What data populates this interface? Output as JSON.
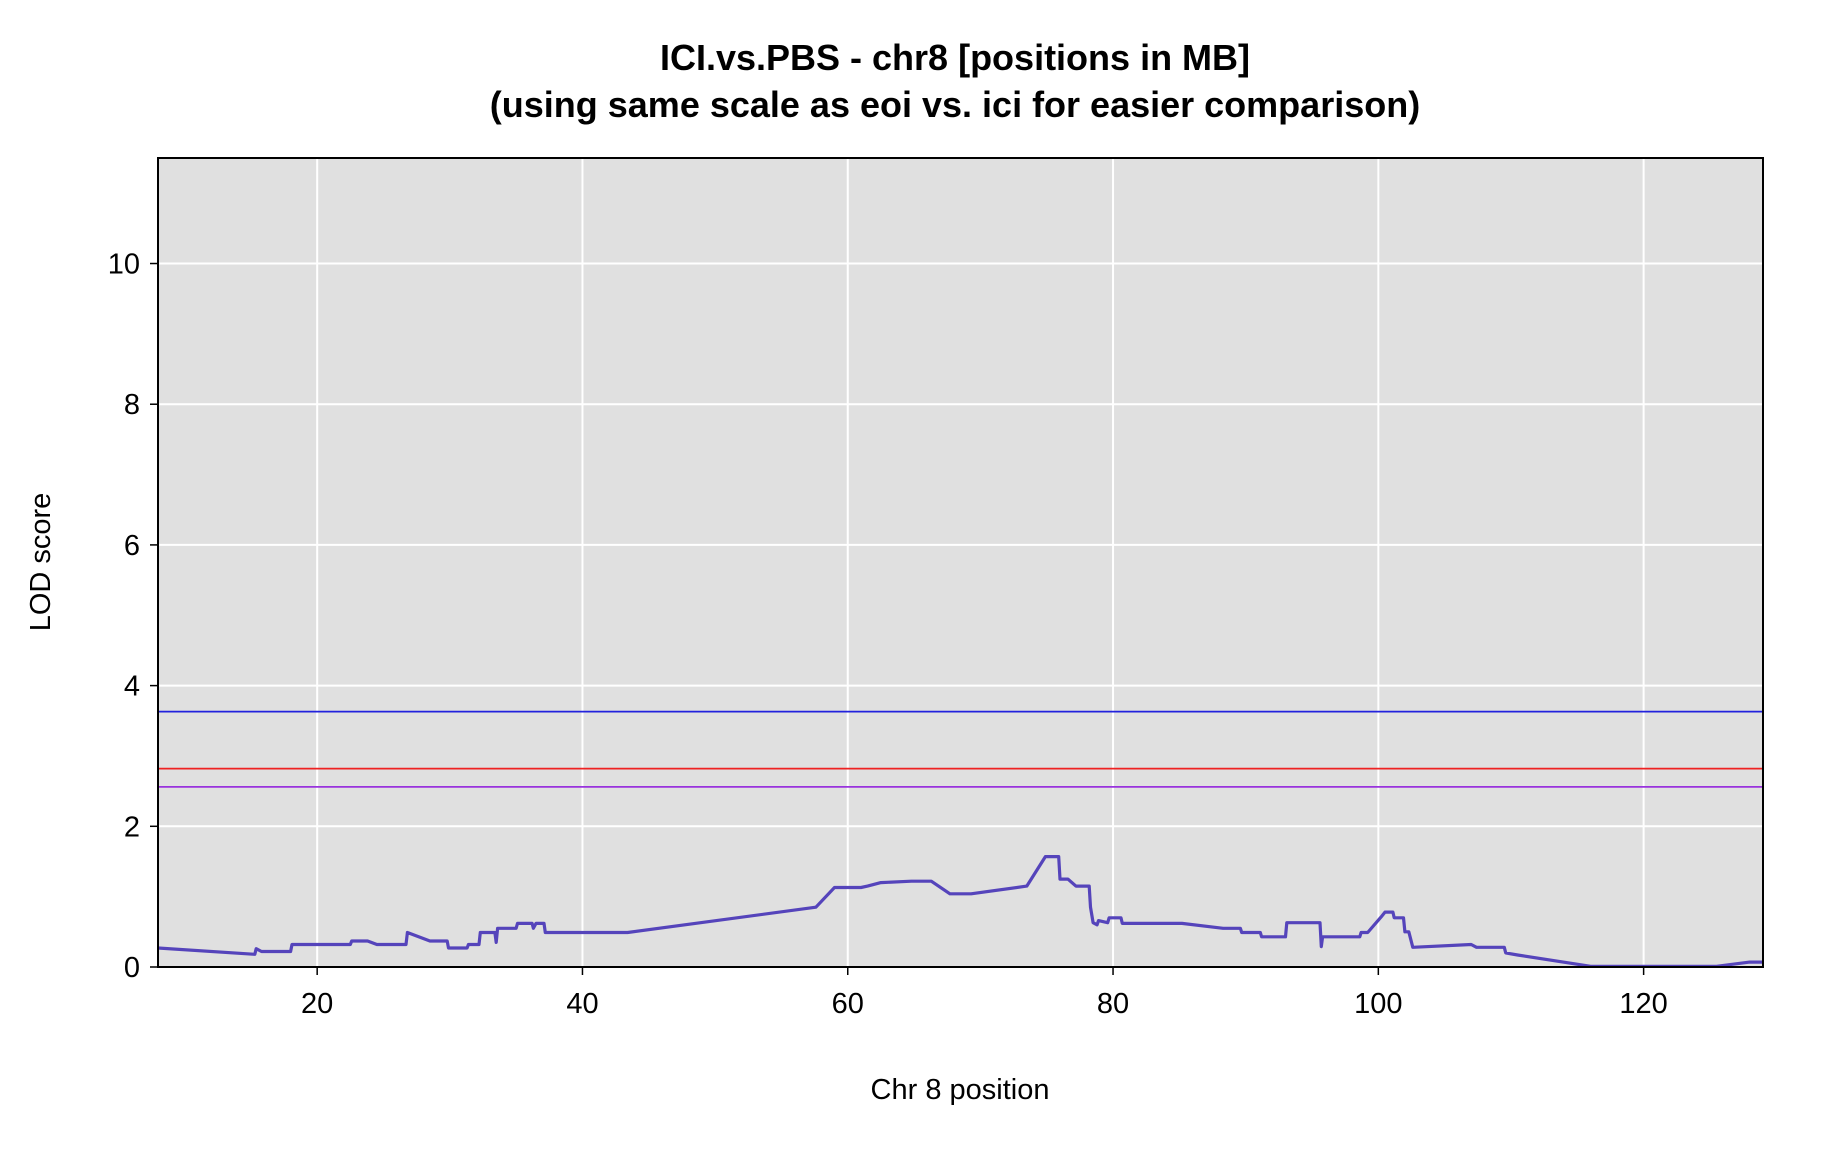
{
  "chart_data": {
    "type": "line",
    "title": "ICI.vs.PBS - chr8 [positions in MB]",
    "subtitle": "(using same scale as eoi vs. ici for easier comparison)",
    "xlabel": "Chr 8 position",
    "ylabel": "LOD score",
    "xlim": [
      8,
      129
    ],
    "ylim": [
      0,
      11.5
    ],
    "x_ticks": [
      20,
      40,
      60,
      80,
      100,
      120
    ],
    "y_ticks": [
      0,
      2,
      4,
      6,
      8,
      10
    ],
    "grid": true,
    "background": "#e0e0e0",
    "thresholds": [
      {
        "value": 3.63,
        "color": "#2222dd"
      },
      {
        "value": 2.82,
        "color": "#ee2222"
      },
      {
        "value": 2.56,
        "color": "#9933dd"
      }
    ],
    "series": [
      {
        "color": "#5544bb",
        "points": [
          [
            8,
            0.27
          ],
          [
            15.3,
            0.18
          ],
          [
            15.4,
            0.26
          ],
          [
            15.8,
            0.22
          ],
          [
            18,
            0.22
          ],
          [
            18.1,
            0.32
          ],
          [
            22.5,
            0.32
          ],
          [
            22.6,
            0.37
          ],
          [
            23.8,
            0.37
          ],
          [
            24.5,
            0.32
          ],
          [
            26.7,
            0.32
          ],
          [
            26.8,
            0.49
          ],
          [
            28.5,
            0.37
          ],
          [
            29.8,
            0.37
          ],
          [
            29.9,
            0.27
          ],
          [
            31.3,
            0.27
          ],
          [
            31.4,
            0.32
          ],
          [
            32.2,
            0.32
          ],
          [
            32.3,
            0.49
          ],
          [
            33.4,
            0.49
          ],
          [
            33.5,
            0.35
          ],
          [
            33.6,
            0.55
          ],
          [
            35,
            0.55
          ],
          [
            35.1,
            0.62
          ],
          [
            36.2,
            0.62
          ],
          [
            36.3,
            0.55
          ],
          [
            36.5,
            0.62
          ],
          [
            37.1,
            0.62
          ],
          [
            37.2,
            0.49
          ],
          [
            43.4,
            0.49
          ],
          [
            57.6,
            0.85
          ],
          [
            59,
            1.13
          ],
          [
            61,
            1.13
          ],
          [
            61.5,
            1.15
          ],
          [
            62.5,
            1.2
          ],
          [
            64.8,
            1.22
          ],
          [
            66.3,
            1.22
          ],
          [
            67.7,
            1.04
          ],
          [
            69.3,
            1.04
          ],
          [
            73.5,
            1.15
          ],
          [
            74.9,
            1.57
          ],
          [
            75.9,
            1.57
          ],
          [
            76,
            1.25
          ],
          [
            76.6,
            1.25
          ],
          [
            77.2,
            1.15
          ],
          [
            78.2,
            1.15
          ],
          [
            78.3,
            0.85
          ],
          [
            78.5,
            0.63
          ],
          [
            78.8,
            0.6
          ],
          [
            78.9,
            0.66
          ],
          [
            79.6,
            0.63
          ],
          [
            79.7,
            0.7
          ],
          [
            80.6,
            0.7
          ],
          [
            80.7,
            0.62
          ],
          [
            84.8,
            0.62
          ],
          [
            85.2,
            0.62
          ],
          [
            88.3,
            0.55
          ],
          [
            89.6,
            0.55
          ],
          [
            89.7,
            0.49
          ],
          [
            91.1,
            0.49
          ],
          [
            91.2,
            0.43
          ],
          [
            93,
            0.43
          ],
          [
            93.1,
            0.63
          ],
          [
            95.6,
            0.63
          ],
          [
            95.7,
            0.29
          ],
          [
            95.8,
            0.43
          ],
          [
            98.6,
            0.43
          ],
          [
            98.7,
            0.49
          ],
          [
            99.2,
            0.49
          ],
          [
            100.2,
            0.71
          ],
          [
            100.5,
            0.78
          ],
          [
            101.1,
            0.78
          ],
          [
            101.2,
            0.7
          ],
          [
            101.9,
            0.7
          ],
          [
            102,
            0.5
          ],
          [
            102.3,
            0.5
          ],
          [
            102.6,
            0.28
          ],
          [
            107,
            0.32
          ],
          [
            107.4,
            0.28
          ],
          [
            109.5,
            0.28
          ],
          [
            109.6,
            0.2
          ],
          [
            110.5,
            0.17
          ],
          [
            116,
            0.01
          ],
          [
            121,
            0.01
          ],
          [
            125.5,
            0.01
          ],
          [
            128,
            0.07
          ],
          [
            129,
            0.07
          ]
        ]
      }
    ]
  }
}
